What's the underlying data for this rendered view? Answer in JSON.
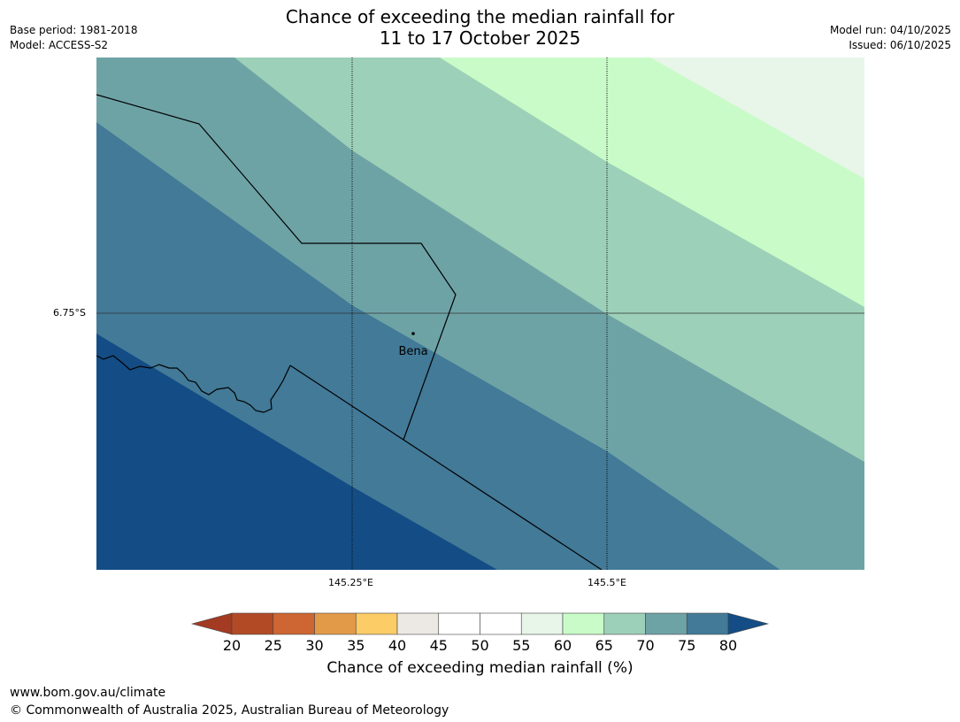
{
  "header": {
    "title_line1": "Chance of exceeding the median rainfall for",
    "title_line2": "11 to 17 October 2025",
    "base_period": "Base period: 1981-2018",
    "model": "Model: ACCESS-S2",
    "model_run": "Model run: 04/10/2025",
    "issued": "Issued: 06/10/2025"
  },
  "map": {
    "place_label": "Bena",
    "lat_label": "6.75°S",
    "lon_labels": [
      "145.25°E",
      "145.5°E"
    ]
  },
  "colorbar": {
    "title": "Chance of exceeding median rainfall (%)",
    "ticks": [
      "20",
      "25",
      "30",
      "35",
      "40",
      "45",
      "50",
      "55",
      "60",
      "65",
      "70",
      "75",
      "80"
    ],
    "colors": [
      "#a33a22",
      "#b24a26",
      "#cd6633",
      "#e39a48",
      "#fccc67",
      "#ece9e5",
      "#ffffff",
      "#ffffff",
      "#e8f5e9",
      "#c9fbc8",
      "#9dd0b8",
      "#6ea3a6",
      "#427a98",
      "#144d85"
    ]
  },
  "footer": {
    "website": "www.bom.gov.au/climate",
    "copyright": "© Commonwealth of Australia 2025, Australian Bureau of Meteorology"
  }
}
